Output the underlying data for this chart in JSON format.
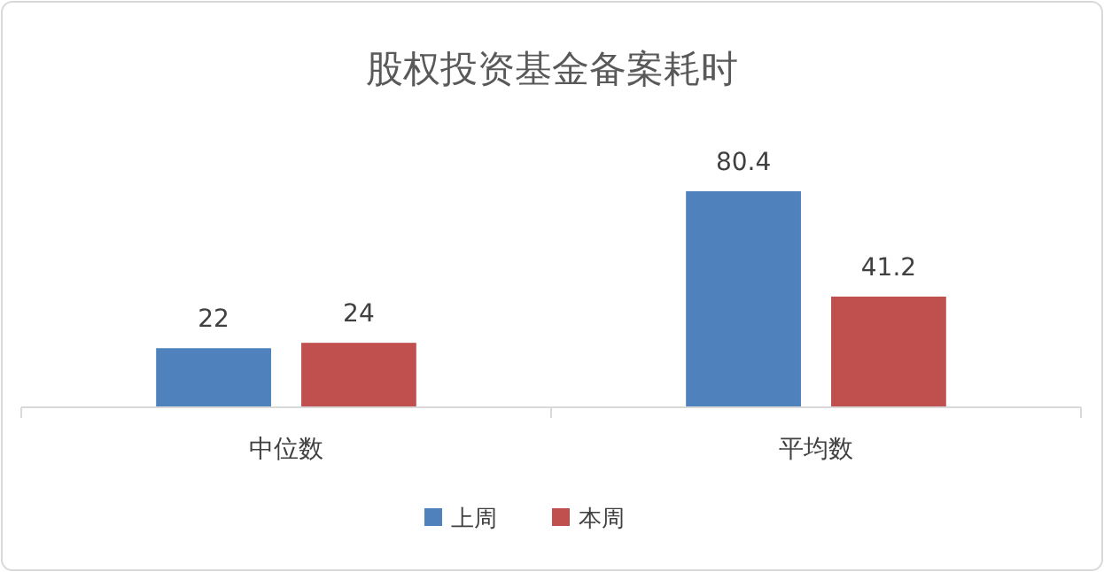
{
  "chart_data": {
    "type": "bar",
    "title": "股权投资基金备案耗时",
    "categories": [
      "中位数",
      "平均数"
    ],
    "series": [
      {
        "name": "上周",
        "color": "#4f81bd",
        "values": [
          22,
          80.4
        ]
      },
      {
        "name": "本周",
        "color": "#c0504d",
        "values": [
          24,
          41.2
        ]
      }
    ],
    "data_labels": true,
    "legend": "bottom"
  }
}
